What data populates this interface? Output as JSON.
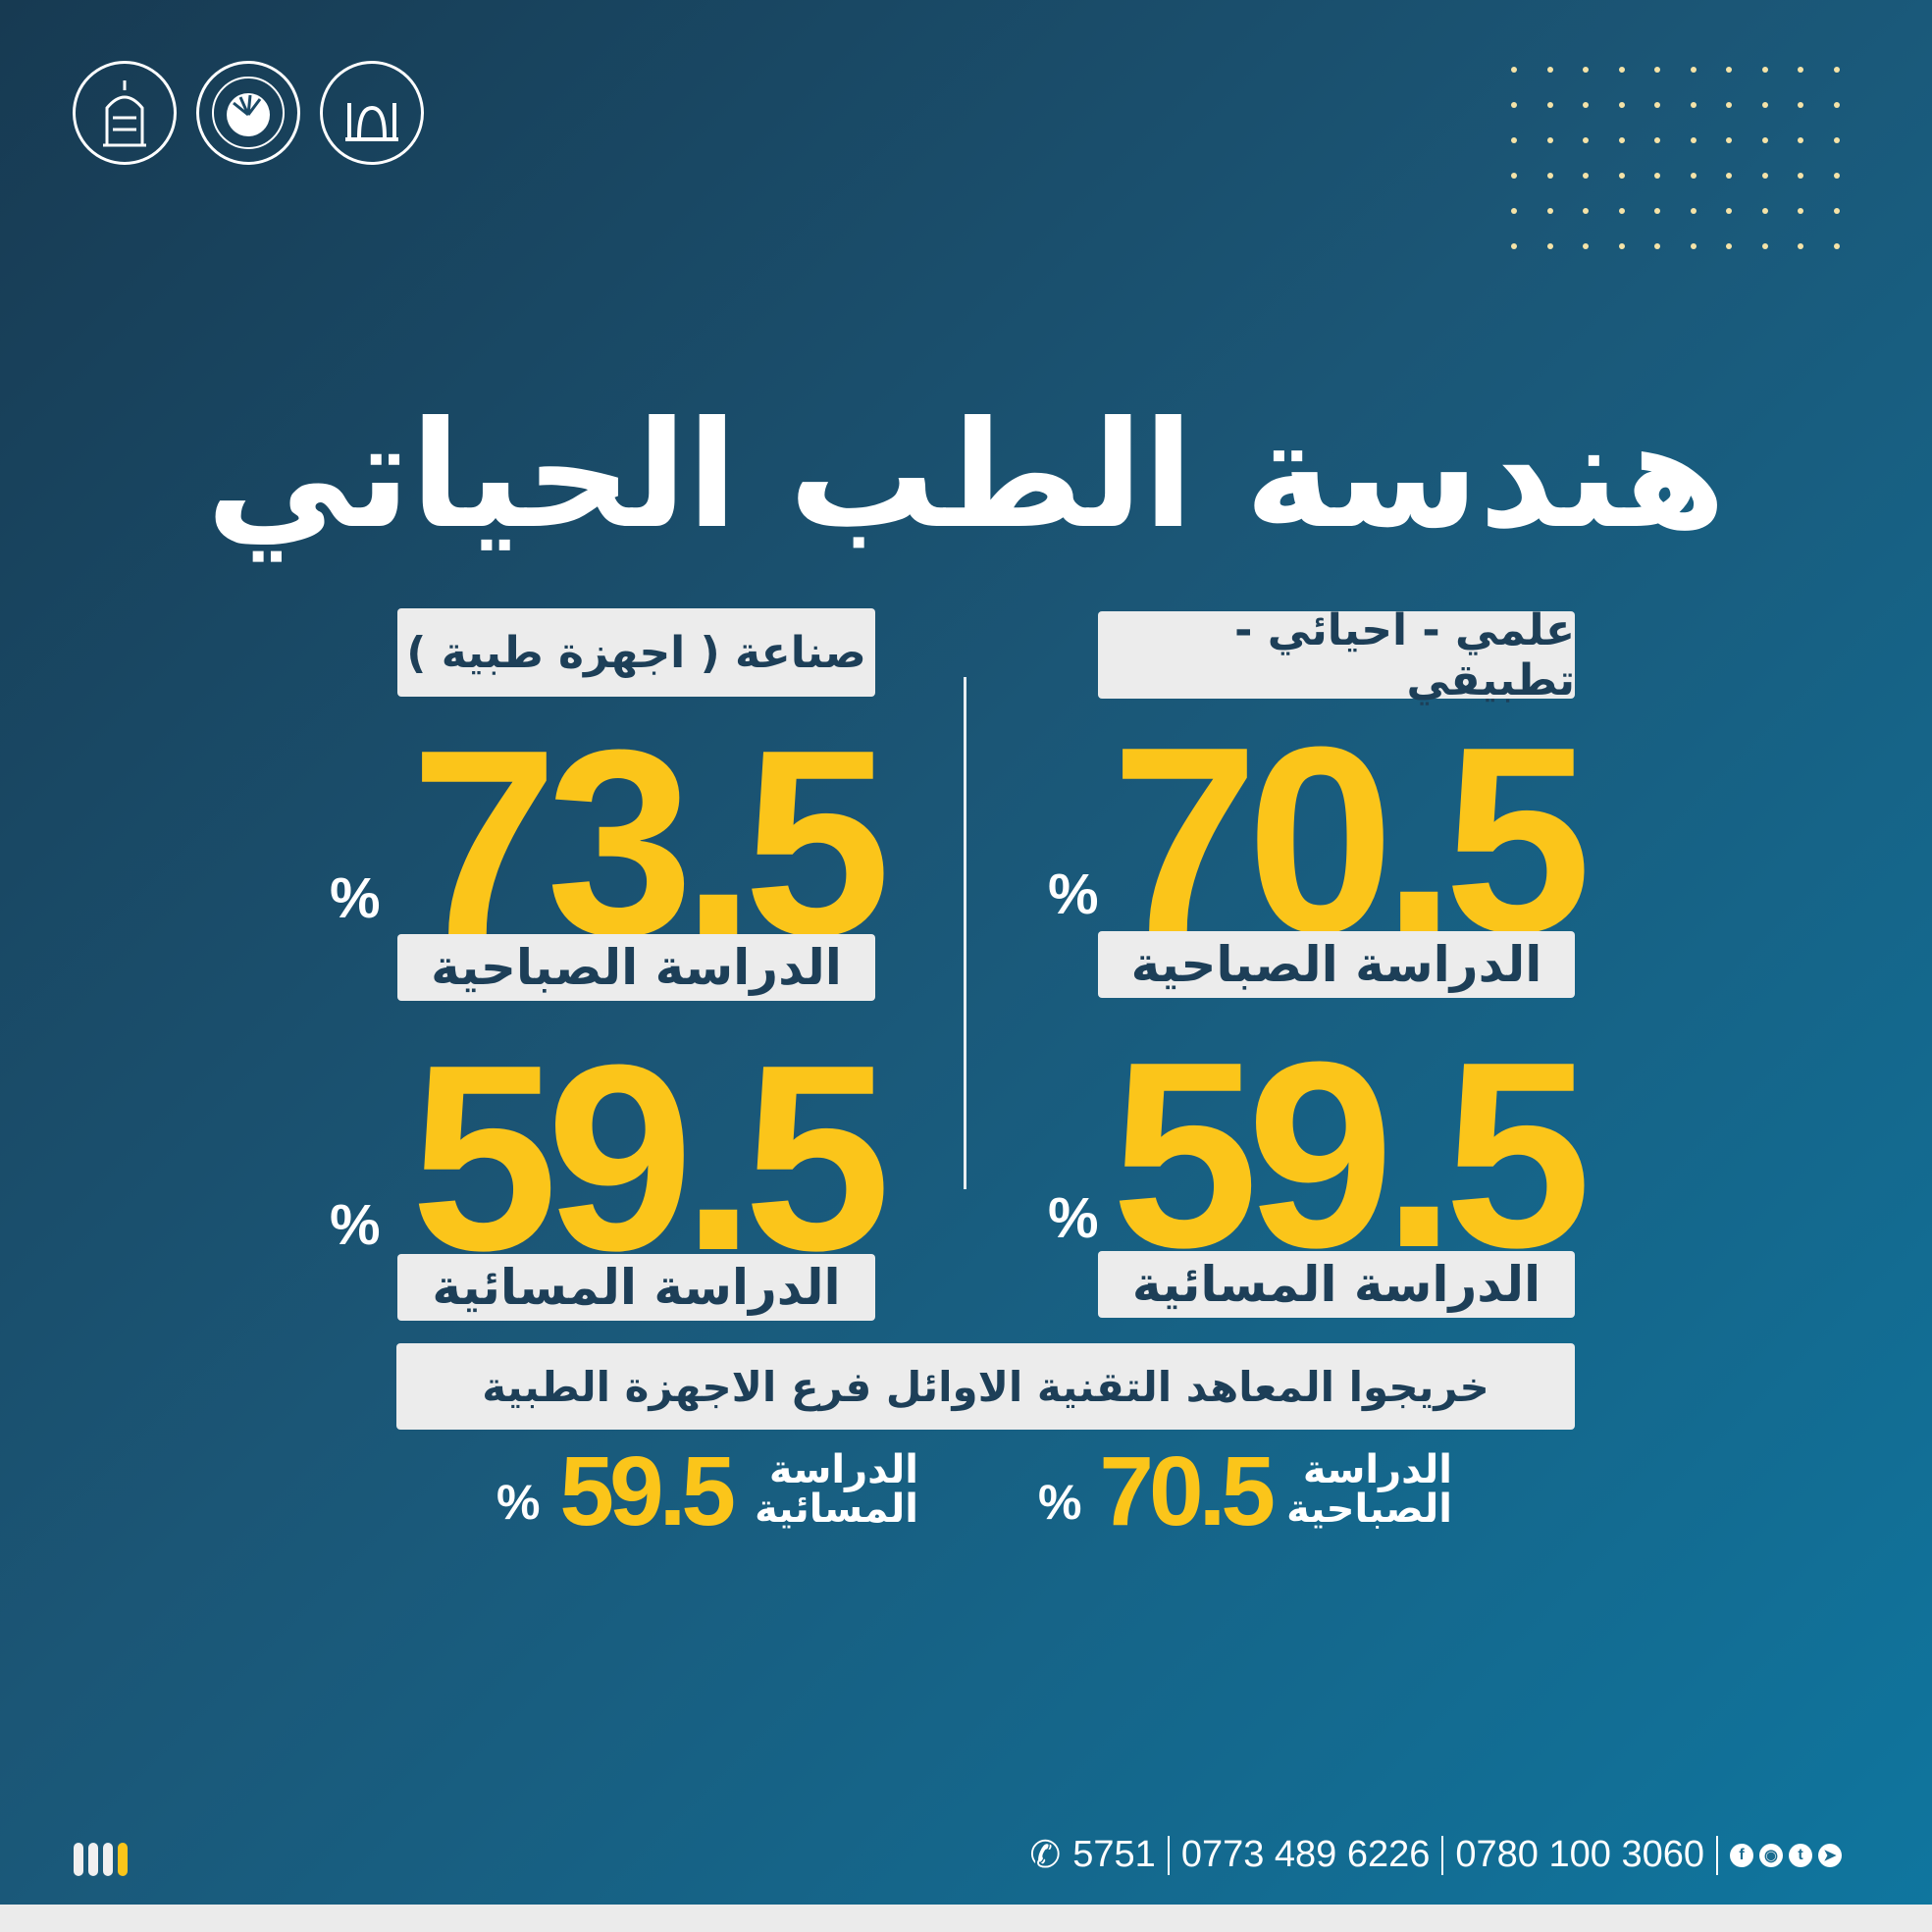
{
  "logos": [
    {
      "name": "university-seal"
    },
    {
      "name": "ministry-higher-education-seal"
    },
    {
      "name": "general-secretariat-seal"
    }
  ],
  "title": "هندسة الطب الحياتي",
  "columns": [
    {
      "branch": "علمي - احيائي - تطبيقي",
      "morning_value": "70.5",
      "morning_label": "الدراسة الصباحية",
      "evening_value": "59.5",
      "evening_label": "الدراسة المسائية",
      "percent": "%"
    },
    {
      "branch": "صناعة ( اجهزة طبية )",
      "morning_value": "73.5",
      "morning_label": "الدراسة الصباحية",
      "evening_value": "59.5",
      "evening_label": "الدراسة المسائية",
      "percent": "%"
    }
  ],
  "graduates": {
    "label": "خريجوا المعاهد التقنية الاوائل فرع الاجهزة الطبية",
    "morning": {
      "label_1": "الدراسة",
      "label_2": "الصباحية",
      "value": "70.5",
      "percent": "%"
    },
    "evening": {
      "label_1": "الدراسة",
      "label_2": "المسائية",
      "value": "59.5",
      "percent": "%"
    }
  },
  "footer": {
    "phones": [
      "5751",
      "0773 489 6226",
      "0780 100 3060"
    ],
    "social": [
      "facebook-icon",
      "instagram-icon",
      "twitter-icon",
      "telegram-icon"
    ]
  },
  "colors": {
    "accent": "#fbc51a",
    "box": "#ececec",
    "box_text": "#1d3f58"
  }
}
